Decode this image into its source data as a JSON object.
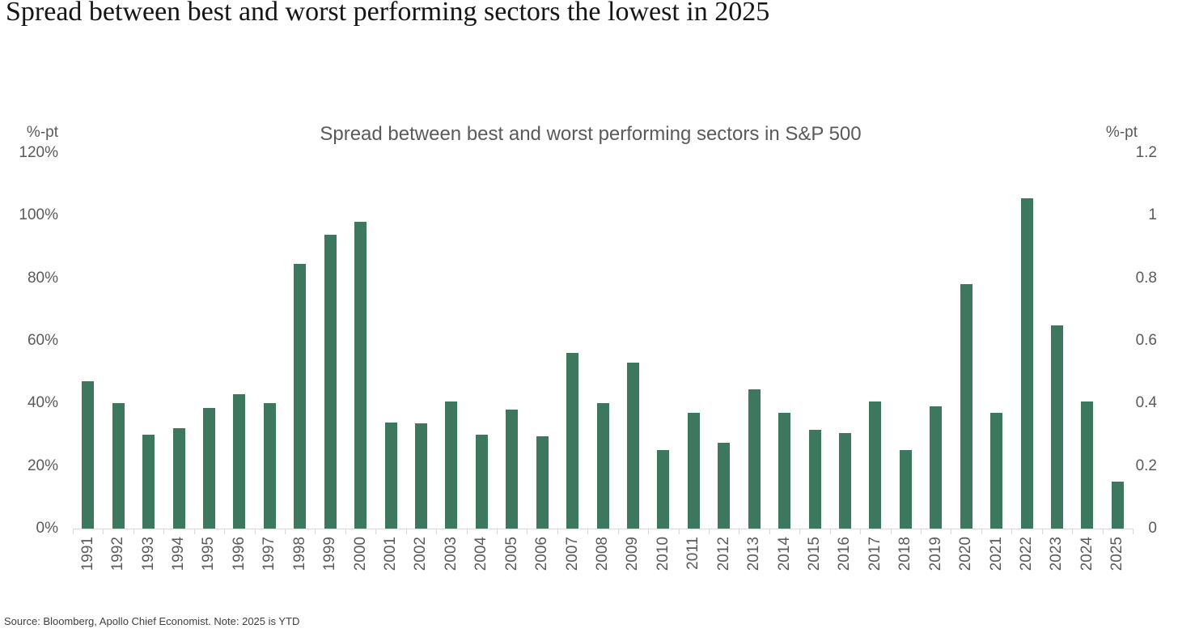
{
  "header": {
    "title": "Spread between best and worst performing sectors the lowest in 2025"
  },
  "chart_data": {
    "type": "bar",
    "title": "Spread between best and worst performing sectors in S&P 500",
    "left_axis_unit": "%-pt",
    "right_axis_unit": "%-pt",
    "categories": [
      "1991",
      "1992",
      "1993",
      "1994",
      "1995",
      "1996",
      "1997",
      "1998",
      "1999",
      "2000",
      "2001",
      "2002",
      "2003",
      "2004",
      "2005",
      "2006",
      "2007",
      "2008",
      "2009",
      "2010",
      "2011",
      "2012",
      "2013",
      "2014",
      "2015",
      "2016",
      "2017",
      "2018",
      "2019",
      "2020",
      "2021",
      "2022",
      "2023",
      "2024",
      "2025"
    ],
    "values": [
      47,
      40,
      30,
      32,
      38.5,
      43,
      40,
      84.5,
      94,
      98,
      34,
      33.5,
      40.5,
      30,
      38,
      29.5,
      56,
      40,
      53,
      25,
      37,
      27.5,
      44.5,
      37,
      31.5,
      30.5,
      40.5,
      25,
      39,
      78,
      37,
      105.5,
      65,
      40.5,
      15
    ],
    "values_unit": "%",
    "ylim_left": [
      0,
      120
    ],
    "ylim_right": [
      0,
      1.2
    ],
    "left_ticks": [
      "120%",
      "100%",
      "80%",
      "60%",
      "40%",
      "20%",
      "0%"
    ],
    "right_ticks": [
      "1.2",
      "1",
      "0.8",
      "0.6",
      "0.4",
      "0.2",
      "0"
    ],
    "grid": false,
    "legend": "none",
    "colors": {
      "bar": "#3d785e",
      "axis_text": "#5a5a5a",
      "axis_line": "#d8d8d8",
      "chart_title": "#5a5a5a",
      "page_title": "#151515"
    }
  },
  "footer": {
    "source": "Source: Bloomberg, Apollo Chief Economist. Note: 2025 is YTD"
  }
}
